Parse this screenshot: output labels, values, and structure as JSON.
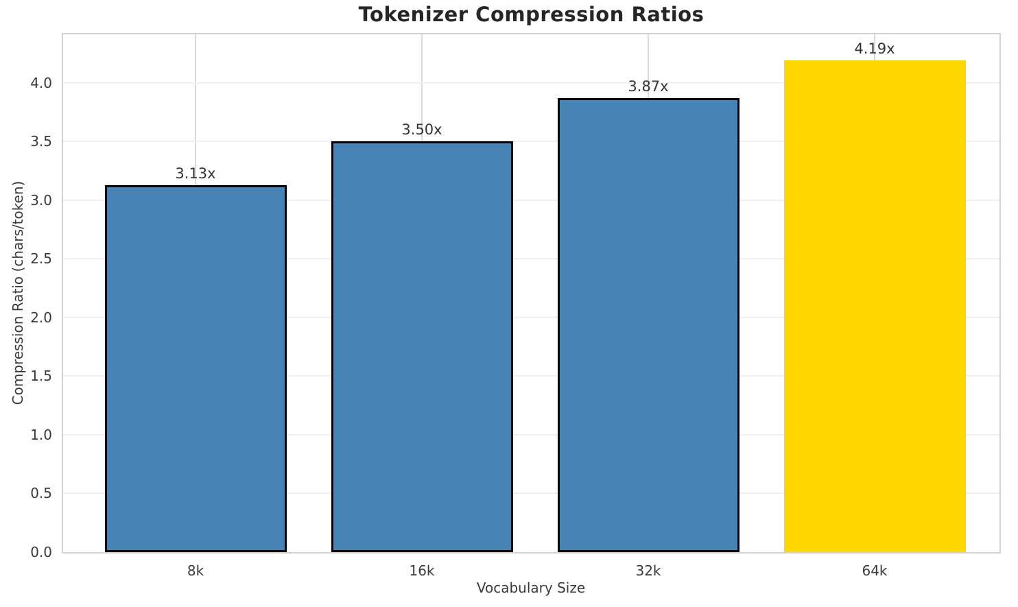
{
  "chart_data": {
    "type": "bar",
    "title": "Tokenizer Compression Ratios",
    "xlabel": "Vocabulary Size",
    "ylabel": "Compression Ratio (chars/token)",
    "categories": [
      "8k",
      "16k",
      "32k",
      "64k"
    ],
    "values": [
      3.13,
      3.5,
      3.87,
      4.19
    ],
    "bar_labels": [
      "3.13x",
      "3.50x",
      "3.87x",
      "4.19x"
    ],
    "bar_colors": [
      "#4783b5",
      "#4783b5",
      "#4783b5",
      "#ffd700"
    ],
    "bar_edge_colors": [
      "#000000",
      "#000000",
      "#000000",
      "none"
    ],
    "ylim": [
      0,
      4.413
    ],
    "yticks": [
      0.0,
      0.5,
      1.0,
      1.5,
      2.0,
      2.5,
      3.0,
      3.5,
      4.0
    ],
    "ytick_labels": [
      "0.0",
      "0.5",
      "1.0",
      "1.5",
      "2.0",
      "2.5",
      "3.0",
      "3.5",
      "4.0"
    ],
    "grid": "both",
    "legend": "none"
  },
  "colors": {
    "title_text": "#262626",
    "axis_text": "#3a3a3a",
    "spine": "#d2d2d2",
    "grid_horizontal": "#f0f0f0",
    "grid_vertical": "#d9d9d9",
    "background": "#ffffff"
  }
}
